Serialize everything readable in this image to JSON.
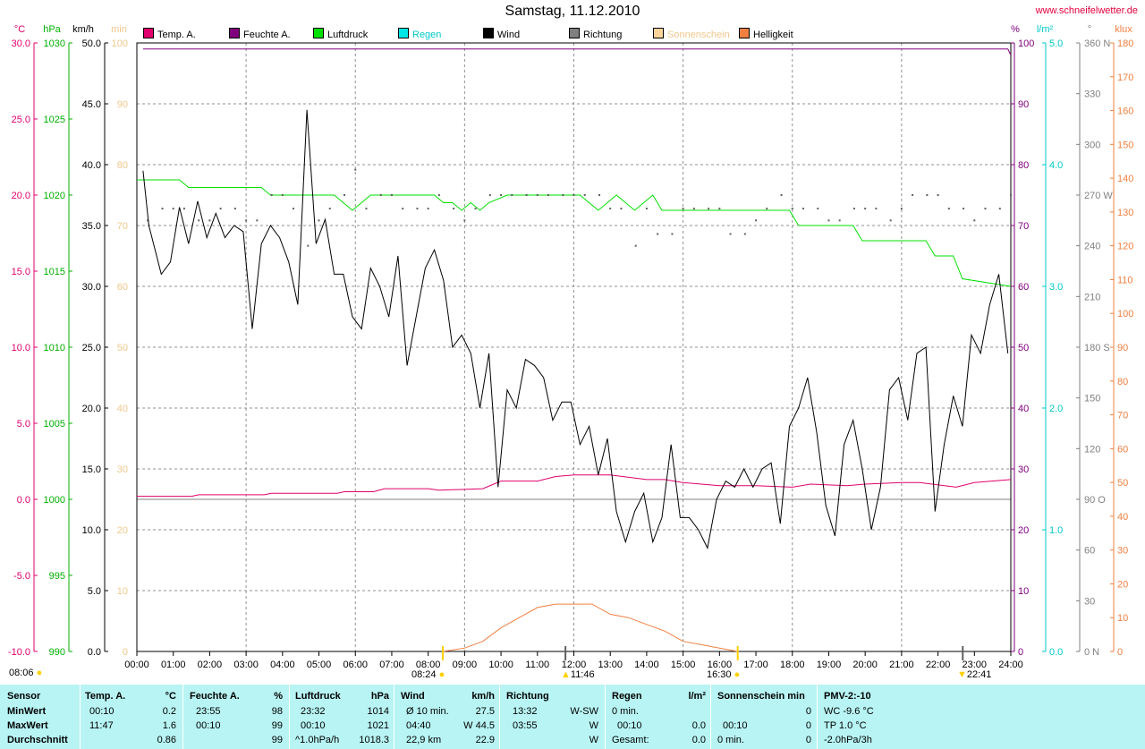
{
  "title": "Samstag, 11.12.2010",
  "site": "www.schneifelwetter.de",
  "legend": [
    {
      "label": "Temp. A.",
      "color": "#e0006e"
    },
    {
      "label": "Feuchte A.",
      "color": "#80007e"
    },
    {
      "label": "Luftdruck",
      "color": "#00e000"
    },
    {
      "label": "Regen",
      "color": "#00e6e6"
    },
    {
      "label": "Wind",
      "color": "#000000"
    },
    {
      "label": "Richtung",
      "color": "#808080"
    },
    {
      "label": "Sonnenschein",
      "color": "#ffd49a"
    },
    {
      "label": "Helligkeit",
      "color": "#f08040"
    }
  ],
  "axis_units": {
    "temp": "°C",
    "pressure": "hPa",
    "wind": "km/h",
    "sun_min": "min",
    "humidity": "%",
    "rain": "l/m²",
    "direction": "°",
    "lux": "klux"
  },
  "axes": {
    "temp": [
      "30.0",
      "25.0",
      "20.0",
      "15.0",
      "10.0",
      "5.0",
      "0.0",
      "-5.0",
      "-10.0"
    ],
    "pressure": [
      "1030",
      "1025",
      "1020",
      "1015",
      "1010",
      "1005",
      "1000",
      "995",
      "990"
    ],
    "wind": [
      "50.0",
      "45.0",
      "40.0",
      "35.0",
      "30.0",
      "25.0",
      "20.0",
      "15.0",
      "10.0",
      "5.0",
      "0.0"
    ],
    "sun_min": [
      "100",
      "90",
      "80",
      "70",
      "60",
      "50",
      "40",
      "30",
      "20",
      "10",
      "0"
    ],
    "humidity": [
      "100",
      "90",
      "80",
      "70",
      "60",
      "50",
      "40",
      "30",
      "20",
      "10",
      "0"
    ],
    "rain": [
      "5.0",
      "4.0",
      "3.0",
      "2.0",
      "1.0",
      "0.0"
    ],
    "direction": [
      "360 N",
      "330",
      "300",
      "270 W",
      "240",
      "210",
      "180 S",
      "150",
      "120",
      "90 O",
      "60",
      "30",
      "0 N"
    ],
    "lux": [
      "180",
      "170",
      "160",
      "150",
      "140",
      "130",
      "120",
      "110",
      "100",
      "90",
      "80",
      "70",
      "60",
      "50",
      "40",
      "30",
      "20",
      "10",
      "0"
    ],
    "time": [
      "00:00",
      "01:00",
      "02:00",
      "03:00",
      "04:00",
      "05:00",
      "06:00",
      "07:00",
      "08:00",
      "09:00",
      "10:00",
      "11:00",
      "12:00",
      "13:00",
      "14:00",
      "15:00",
      "16:00",
      "17:00",
      "18:00",
      "19:00",
      "20:00",
      "21:00",
      "22:00",
      "23:00",
      "24:00"
    ]
  },
  "sun_markers": {
    "left_time": "08:06",
    "sunrise": "08:24",
    "noon": "11:46",
    "sunset": "16:30",
    "moon": "22:41"
  },
  "chart_data": {
    "type": "line",
    "x_unit": "hours",
    "xlim": [
      0,
      24
    ],
    "series": [
      {
        "name": "Wind",
        "unit": "km/h",
        "x": [
          0.17,
          0.33,
          0.67,
          0.92,
          1.17,
          1.42,
          1.67,
          1.92,
          2.17,
          2.42,
          2.67,
          2.92,
          3.17,
          3.42,
          3.67,
          3.92,
          4.17,
          4.42,
          4.67,
          4.92,
          5.17,
          5.42,
          5.67,
          5.92,
          6.17,
          6.42,
          6.67,
          6.92,
          7.17,
          7.42,
          7.67,
          7.92,
          8.17,
          8.42,
          8.67,
          8.92,
          9.17,
          9.42,
          9.67,
          9.92,
          10.17,
          10.42,
          10.67,
          10.92,
          11.17,
          11.42,
          11.67,
          11.92,
          12.17,
          12.42,
          12.67,
          12.92,
          13.17,
          13.42,
          13.67,
          13.92,
          14.17,
          14.42,
          14.67,
          14.92,
          15.17,
          15.42,
          15.67,
          15.92,
          16.17,
          16.42,
          16.67,
          16.92,
          17.17,
          17.42,
          17.67,
          17.92,
          18.17,
          18.42,
          18.67,
          18.92,
          19.17,
          19.42,
          19.67,
          19.92,
          20.17,
          20.42,
          20.67,
          20.92,
          21.17,
          21.42,
          21.67,
          21.92,
          22.17,
          22.42,
          22.67,
          22.92,
          23.17,
          23.42,
          23.67,
          23.92
        ],
        "values": [
          39.5,
          35.0,
          31.0,
          32.0,
          36.5,
          33.5,
          37.0,
          34.0,
          36.0,
          34.0,
          35.0,
          34.5,
          26.5,
          33.5,
          35.0,
          34.0,
          32.0,
          28.5,
          44.5,
          33.5,
          35.5,
          31.0,
          31.0,
          27.5,
          26.5,
          31.5,
          30.0,
          27.5,
          32.5,
          23.5,
          27.5,
          31.5,
          33.0,
          30.5,
          25.0,
          26.0,
          24.5,
          20.0,
          24.5,
          13.5,
          21.5,
          20.0,
          24.0,
          23.5,
          22.5,
          19.0,
          20.5,
          20.5,
          17.0,
          18.5,
          14.5,
          17.5,
          11.5,
          9.0,
          11.5,
          13.0,
          9.0,
          11.0,
          17.0,
          11.0,
          11.0,
          10.0,
          8.5,
          12.5,
          14.0,
          13.5,
          15.0,
          13.5,
          15.0,
          15.5,
          10.5,
          18.5,
          20.0,
          22.5,
          18.0,
          12.0,
          9.5,
          17.0,
          19.0,
          15.0,
          10.0,
          13.5,
          21.5,
          22.5,
          19.0,
          24.5,
          25.0,
          11.5,
          17.0,
          21.0,
          18.5,
          26.0,
          24.5,
          28.5,
          31.0,
          24.5
        ]
      },
      {
        "name": "Luftdruck",
        "unit": "hPa",
        "x": [
          0.0,
          1.17,
          1.42,
          3.42,
          3.67,
          5.42,
          5.67,
          5.92,
          6.17,
          6.42,
          8.17,
          8.42,
          8.67,
          8.92,
          9.17,
          9.42,
          9.67,
          10.17,
          12.17,
          12.42,
          12.67,
          12.92,
          13.17,
          13.42,
          13.67,
          13.92,
          14.17,
          14.42,
          17.92,
          18.17,
          19.67,
          19.92,
          21.67,
          21.92,
          22.42,
          22.67,
          24.0
        ],
        "values": [
          1021.0,
          1021.0,
          1020.5,
          1020.5,
          1020.0,
          1020.0,
          1019.5,
          1019.0,
          1019.5,
          1020.0,
          1020.0,
          1019.5,
          1019.5,
          1019.0,
          1019.5,
          1019.0,
          1019.5,
          1020.0,
          1020.0,
          1019.5,
          1019.0,
          1019.5,
          1020.0,
          1019.5,
          1019.0,
          1019.5,
          1020.0,
          1019.0,
          1019.0,
          1018.0,
          1018.0,
          1017.0,
          1017.0,
          1016.0,
          1016.0,
          1014.5,
          1014.0
        ]
      },
      {
        "name": "Temp. A.",
        "unit": "°C",
        "x": [
          0,
          1.5,
          1.7,
          3.5,
          3.7,
          5.5,
          5.7,
          6.5,
          6.8,
          8.0,
          8.3,
          9.5,
          9.8,
          10.0,
          11.0,
          11.5,
          12.0,
          13.0,
          14.0,
          14.5,
          15.0,
          16.0,
          17.0,
          18.0,
          18.5,
          19.5,
          20.0,
          21.0,
          21.5,
          22.5,
          23.0,
          24.0
        ],
        "values": [
          0.2,
          0.2,
          0.3,
          0.3,
          0.4,
          0.4,
          0.5,
          0.5,
          0.7,
          0.7,
          0.6,
          0.7,
          1.0,
          1.2,
          1.2,
          1.5,
          1.6,
          1.6,
          1.3,
          1.3,
          1.1,
          0.9,
          0.9,
          0.8,
          1.0,
          0.9,
          1.0,
          1.1,
          1.1,
          0.8,
          1.1,
          1.3
        ]
      },
      {
        "name": "Feuchte A.",
        "unit": "%",
        "x": [
          0.17,
          23.92,
          24.0
        ],
        "values": [
          99,
          99,
          98
        ]
      },
      {
        "name": "Richtung",
        "unit": "°",
        "x": [
          0.3,
          0.7,
          1.0,
          1.3,
          1.7,
          2.0,
          2.3,
          2.7,
          3.0,
          3.3,
          3.7,
          4.0,
          4.3,
          4.7,
          5.0,
          5.3,
          5.7,
          6.0,
          6.3,
          6.7,
          7.0,
          7.3,
          7.7,
          8.0,
          8.3,
          8.7,
          9.0,
          9.3,
          9.7,
          10.0,
          10.3,
          10.7,
          11.0,
          11.3,
          11.7,
          12.0,
          12.3,
          12.7,
          13.0,
          13.3,
          13.7,
          14.0,
          14.3,
          14.7,
          15.0,
          15.3,
          15.7,
          16.0,
          16.3,
          16.7,
          17.0,
          17.3,
          17.7,
          18.0,
          18.3,
          18.7,
          19.0,
          19.3,
          19.7,
          20.0,
          20.3,
          20.7,
          21.0,
          21.3,
          21.7,
          22.0,
          22.3,
          22.7,
          23.0,
          23.3,
          23.7,
          24.0
        ],
        "values": [
          255,
          262,
          262,
          262,
          255,
          255,
          262,
          262,
          255,
          255,
          270,
          270,
          262,
          240,
          255,
          262,
          270,
          285,
          262,
          270,
          270,
          262,
          262,
          262,
          270,
          262,
          255,
          262,
          270,
          270,
          270,
          270,
          270,
          270,
          270,
          270,
          270,
          270,
          262,
          262,
          240,
          262,
          247,
          247,
          262,
          262,
          262,
          262,
          247,
          247,
          255,
          262,
          270,
          262,
          262,
          262,
          255,
          255,
          262,
          262,
          262,
          255,
          262,
          270,
          270,
          270,
          262,
          262,
          255,
          262,
          262,
          270
        ]
      },
      {
        "name": "Helligkeit",
        "unit": "klux",
        "x": [
          8.4,
          9.0,
          9.5,
          10.0,
          10.5,
          11.0,
          11.5,
          12.0,
          12.5,
          13.0,
          13.5,
          14.0,
          14.5,
          15.0,
          15.5,
          16.0,
          16.5
        ],
        "values": [
          0,
          1,
          3,
          7,
          10,
          13,
          14,
          14,
          14,
          11,
          10,
          8,
          6,
          3,
          2,
          1,
          0
        ]
      }
    ],
    "ylim": {
      "temp": [
        -10,
        30
      ],
      "pressure": [
        990,
        1030
      ],
      "wind": [
        0,
        50
      ],
      "humidity": [
        0,
        100
      ],
      "lux": [
        0,
        180
      ],
      "direction": [
        0,
        360
      ]
    }
  },
  "table": {
    "sensor": {
      "header": "Sensor",
      "rows": [
        "MinWert",
        "MaxWert",
        "Durchschnitt"
      ]
    },
    "temp": {
      "header": "Temp. A.",
      "unit": "°C",
      "rows": [
        [
          "00:10",
          "0.2"
        ],
        [
          "11:47",
          "1.6"
        ],
        [
          "",
          "0.86"
        ]
      ]
    },
    "feuchte": {
      "header": "Feuchte A.",
      "unit": "%",
      "rows": [
        [
          "23:55",
          "98"
        ],
        [
          "00:10",
          "99"
        ],
        [
          "",
          "99"
        ]
      ]
    },
    "druck": {
      "header": "Luftdruck",
      "unit": "hPa",
      "rows": [
        [
          "23:32",
          "1014"
        ],
        [
          "00:10",
          "1021"
        ],
        [
          "^1.0hPa/h",
          "1018.3"
        ]
      ]
    },
    "wind": {
      "header": "Wind",
      "unit": "km/h",
      "rows": [
        [
          "Ø 10 min.",
          "27.5"
        ],
        [
          "04:40",
          "W 44.5"
        ],
        [
          "22,9 km",
          "22.9"
        ]
      ]
    },
    "richtung": {
      "header": "Richtung",
      "rows": [
        [
          "13:32",
          "W-SW"
        ],
        [
          "03:55",
          "W"
        ],
        [
          "",
          "W"
        ]
      ]
    },
    "regen": {
      "header": "Regen",
      "unit": "l/m²",
      "rows": [
        [
          "0 min.",
          ""
        ],
        [
          "00:10",
          "0.0"
        ],
        [
          "Gesamt:",
          "0.0"
        ]
      ]
    },
    "sonne": {
      "header": "Sonnenschein min",
      "rows": [
        [
          "00:10",
          "0"
        ],
        [
          "00:10",
          "0"
        ],
        [
          "0 min.",
          "0"
        ]
      ]
    },
    "pmv": {
      "header": "PMV-2:-10",
      "rows": [
        "WC -9.6 °C",
        "TP 1.0 °C",
        "-2.0hPa/3h"
      ]
    }
  }
}
